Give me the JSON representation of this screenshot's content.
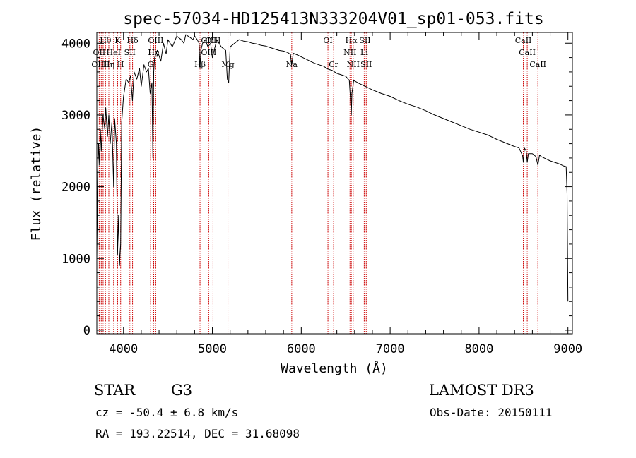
{
  "chart_data": {
    "type": "line",
    "title": "spec-57034-HD125413N333204V01_sp01-053.fits",
    "xlabel": "Wavelength (Å)",
    "ylabel": "Flux (relative)",
    "xlim": [
      3700,
      9050
    ],
    "ylim": [
      -50,
      4150
    ],
    "xticks": [
      4000,
      5000,
      6000,
      7000,
      8000,
      9000
    ],
    "yticks": [
      0,
      1000,
      2000,
      3000,
      4000
    ],
    "series": [
      {
        "name": "flux",
        "x": [
          3700,
          3710,
          3720,
          3730,
          3740,
          3750,
          3770,
          3790,
          3800,
          3820,
          3835,
          3850,
          3870,
          3889,
          3900,
          3920,
          3933,
          3945,
          3955,
          3968,
          3980,
          4000,
          4030,
          4060,
          4080,
          4101,
          4120,
          4150,
          4180,
          4200,
          4230,
          4260,
          4280,
          4300,
          4320,
          4330,
          4340,
          4350,
          4380,
          4420,
          4450,
          4480,
          4500,
          4550,
          4600,
          4650,
          4680,
          4700,
          4750,
          4780,
          4800,
          4830,
          4850,
          4861,
          4870,
          4890,
          4920,
          4950,
          4980,
          5000,
          5050,
          5100,
          5150,
          5168,
          5183,
          5200,
          5250,
          5300,
          5350,
          5400,
          5450,
          5500,
          5550,
          5600,
          5650,
          5700,
          5750,
          5800,
          5850,
          5880,
          5890,
          5896,
          5910,
          5950,
          6000,
          6050,
          6100,
          6150,
          6200,
          6250,
          6300,
          6350,
          6400,
          6450,
          6500,
          6540,
          6555,
          6563,
          6570,
          6590,
          6620,
          6650,
          6700,
          6800,
          6900,
          7000,
          7100,
          7200,
          7300,
          7400,
          7500,
          7600,
          7700,
          7800,
          7900,
          8000,
          8100,
          8200,
          8300,
          8400,
          8450,
          8490,
          8498,
          8510,
          8530,
          8542,
          8555,
          8600,
          8640,
          8662,
          8680,
          8700,
          8750,
          8800,
          8850,
          8900,
          8950,
          8980,
          8990,
          9000
        ],
        "values": [
          1000,
          2200,
          2600,
          2300,
          2800,
          2500,
          3000,
          2800,
          3100,
          2700,
          3000,
          2600,
          2900,
          2000,
          2950,
          2600,
          1050,
          1600,
          900,
          1200,
          2900,
          3250,
          3500,
          3450,
          3550,
          3200,
          3600,
          3500,
          3650,
          3400,
          3700,
          3600,
          3650,
          3300,
          3450,
          2400,
          3600,
          3800,
          3900,
          3750,
          4000,
          3850,
          4050,
          3950,
          4100,
          4050,
          4000,
          4120,
          4080,
          4050,
          4100,
          4050,
          4000,
          3650,
          3900,
          4000,
          4050,
          3950,
          4000,
          3800,
          4050,
          3950,
          3900,
          3500,
          3450,
          3950,
          4000,
          4050,
          4030,
          4020,
          4000,
          3990,
          3970,
          3960,
          3940,
          3920,
          3900,
          3890,
          3870,
          3840,
          3700,
          3720,
          3860,
          3840,
          3810,
          3780,
          3750,
          3720,
          3700,
          3680,
          3640,
          3620,
          3580,
          3560,
          3540,
          3480,
          3200,
          3000,
          3300,
          3480,
          3460,
          3440,
          3410,
          3350,
          3300,
          3260,
          3200,
          3150,
          3110,
          3060,
          3000,
          2950,
          2900,
          2850,
          2800,
          2760,
          2720,
          2660,
          2610,
          2560,
          2540,
          2430,
          2340,
          2540,
          2500,
          2340,
          2460,
          2460,
          2420,
          2300,
          2440,
          2420,
          2390,
          2360,
          2340,
          2320,
          2290,
          2280,
          1900,
          400
        ]
      }
    ],
    "line_annotations": [
      {
        "name": "Hθ",
        "wavelength": 3798,
        "row": 0
      },
      {
        "name": "K",
        "wavelength": 3934,
        "row": 0
      },
      {
        "name": "Hδ",
        "wavelength": 4102,
        "row": 0
      },
      {
        "name": "OIII",
        "wavelength": 4363,
        "row": 0
      },
      {
        "name": "OIII",
        "wavelength": 4959,
        "row": 0
      },
      {
        "name": "OIII",
        "wavelength": 5007,
        "row": 0
      },
      {
        "name": "OI",
        "wavelength": 6300,
        "row": 0
      },
      {
        "name": "Hα",
        "wavelength": 6563,
        "row": 0
      },
      {
        "name": "SII",
        "wavelength": 6717,
        "row": 0
      },
      {
        "name": "CaII",
        "wavelength": 8498,
        "row": 0
      },
      {
        "name": "OII",
        "wavelength": 3727,
        "row": 1
      },
      {
        "name": "HeI",
        "wavelength": 3889,
        "row": 1
      },
      {
        "name": "SII",
        "wavelength": 4072,
        "row": 1
      },
      {
        "name": "Hγ",
        "wavelength": 4340,
        "row": 1
      },
      {
        "name": "OIII",
        "wavelength": 4959,
        "row": 1
      },
      {
        "name": "NII",
        "wavelength": 6548,
        "row": 1
      },
      {
        "name": "Li",
        "wavelength": 6708,
        "row": 1
      },
      {
        "name": "CaII",
        "wavelength": 8542,
        "row": 1
      },
      {
        "name": "OIII",
        "wavelength": 3727,
        "row": 2
      },
      {
        "name": "Hη",
        "wavelength": 3835,
        "row": 2
      },
      {
        "name": "H",
        "wavelength": 3968,
        "row": 2
      },
      {
        "name": "G",
        "wavelength": 4305,
        "row": 2
      },
      {
        "name": "Hβ",
        "wavelength": 4861,
        "row": 2
      },
      {
        "name": "Mg",
        "wavelength": 5175,
        "row": 2
      },
      {
        "name": "Na",
        "wavelength": 5893,
        "row": 2
      },
      {
        "name": "Cr",
        "wavelength": 6364,
        "row": 2
      },
      {
        "name": "NII",
        "wavelength": 6584,
        "row": 2
      },
      {
        "name": "SII",
        "wavelength": 6731,
        "row": 2
      },
      {
        "name": "CaII",
        "wavelength": 8662,
        "row": 2
      }
    ],
    "marker_lines": [
      3727,
      3750,
      3771,
      3798,
      3835,
      3889,
      3934,
      3968,
      4072,
      4102,
      4305,
      4340,
      4363,
      4861,
      4959,
      5007,
      5175,
      5893,
      6300,
      6364,
      6548,
      6563,
      6584,
      6708,
      6717,
      6731,
      8498,
      8542,
      8662
    ],
    "colors": {
      "spectrum": "#000000",
      "marker": "#cc0000",
      "axes": "#000000"
    }
  },
  "info": {
    "object_class": "STAR",
    "subclass": "G3",
    "survey": "LAMOST DR3",
    "redshift": "cz = -50.4 ± 6.8 km/s",
    "obs_date": "Obs-Date: 20150111",
    "coords": "RA = 193.22514, DEC =  31.68098"
  }
}
